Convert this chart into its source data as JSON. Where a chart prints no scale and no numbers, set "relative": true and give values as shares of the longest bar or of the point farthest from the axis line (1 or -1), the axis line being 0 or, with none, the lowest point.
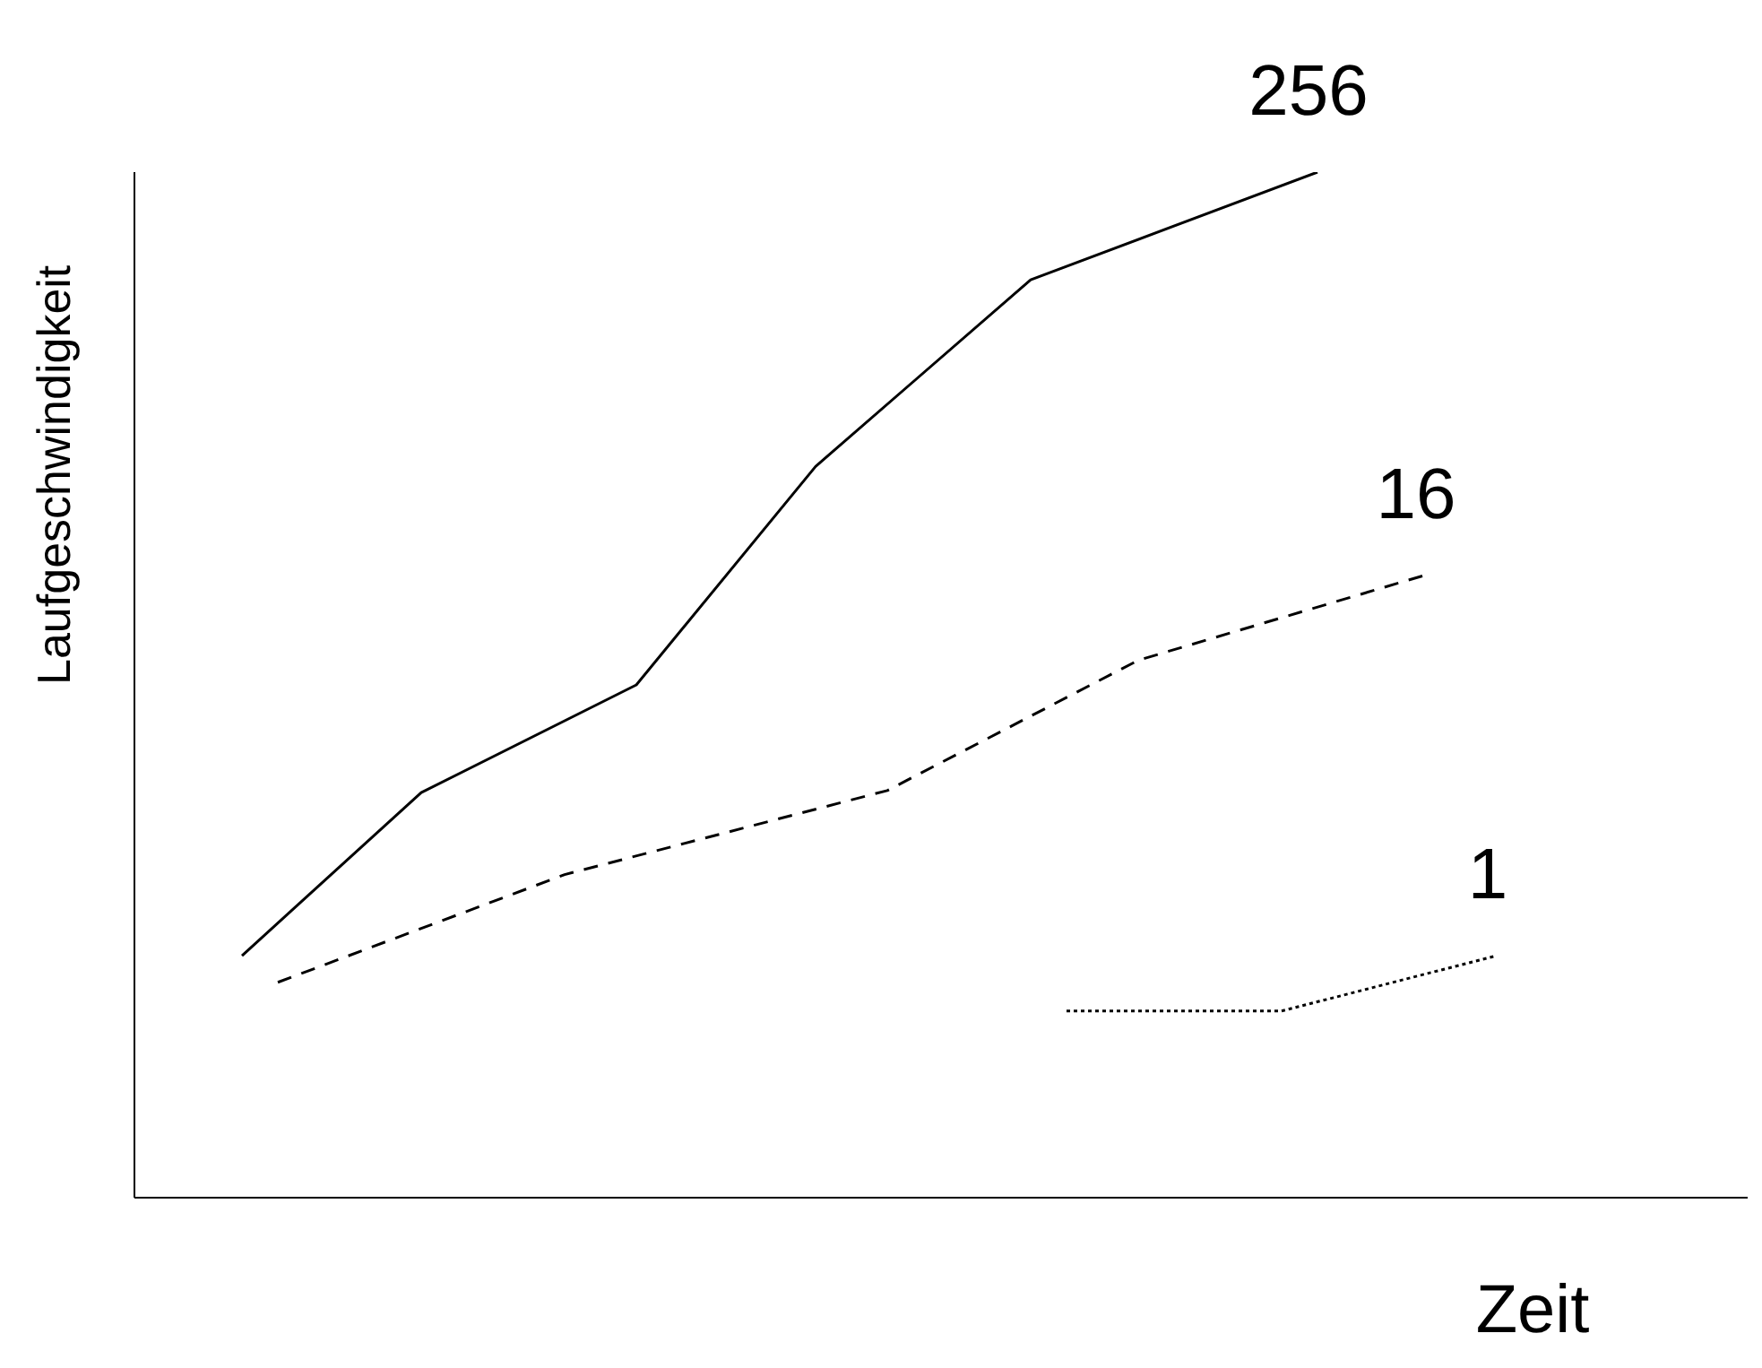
{
  "chart_data": {
    "type": "line",
    "relative": true,
    "xlabel": "Zeit",
    "ylabel": "Laufgeschwindigkeit",
    "legend": false,
    "grid": false,
    "marker": "none",
    "categories": [
      null,
      null,
      null,
      null,
      null,
      null,
      null,
      null,
      null,
      null,
      null,
      null,
      null,
      null,
      null,
      null,
      null,
      null,
      null,
      null,
      null,
      null,
      null,
      null,
      null,
      null,
      null,
      null,
      null,
      null,
      null,
      null,
      null,
      null,
      null,
      null,
      null,
      null,
      null,
      null,
      null,
      null,
      null,
      null,
      null,
      null
    ],
    "series": [
      {
        "name": "256",
        "color": "#000000",
        "line_style": "solid",
        "values": [
          null,
          null,
          null,
          0.236,
          null,
          null,
          null,
          null,
          0.395,
          null,
          null,
          null,
          null,
          null,
          0.5,
          null,
          null,
          null,
          null,
          0.713,
          null,
          null,
          null,
          null,
          null,
          0.895,
          null,
          null,
          null,
          null,
          null,
          null,
          null,
          1,
          null,
          null,
          null,
          null,
          null,
          null,
          null,
          null,
          null,
          null,
          null,
          null
        ]
      },
      {
        "name": "16",
        "color": "#000000",
        "line_style": "dashed",
        "values": [
          null,
          null,
          null,
          null,
          0.21,
          null,
          null,
          null,
          null,
          null,
          null,
          null,
          0.315,
          null,
          null,
          null,
          null,
          null,
          null,
          null,
          null,
          0.397,
          null,
          null,
          null,
          null,
          null,
          null,
          0.524,
          null,
          null,
          null,
          null,
          null,
          null,
          null,
          0.607,
          null,
          null,
          null,
          null,
          null,
          null,
          null,
          null,
          null
        ]
      },
      {
        "name": "1",
        "color": "#000000",
        "line_style": "dotted",
        "values": [
          null,
          null,
          null,
          null,
          null,
          null,
          null,
          null,
          null,
          null,
          null,
          null,
          null,
          null,
          null,
          null,
          null,
          null,
          null,
          null,
          null,
          null,
          null,
          null,
          null,
          null,
          0.182,
          null,
          null,
          null,
          null,
          null,
          0.182,
          null,
          null,
          null,
          null,
          null,
          0.236,
          null,
          null,
          null,
          null,
          null,
          null,
          null
        ]
      }
    ]
  }
}
